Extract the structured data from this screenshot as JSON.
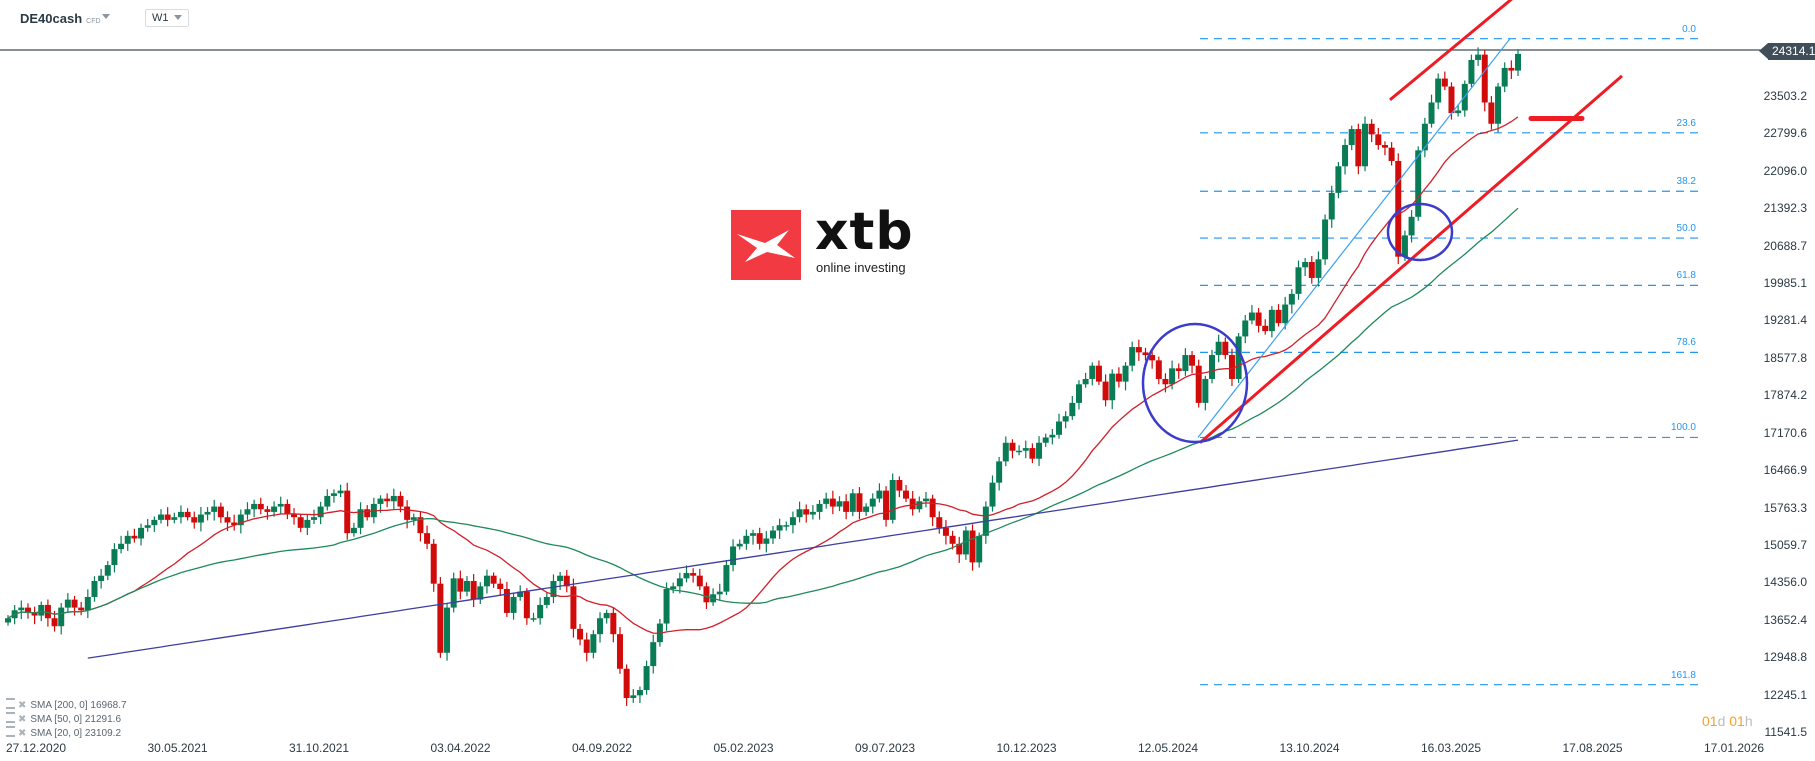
{
  "header": {
    "symbol": "DE40cash",
    "symbol_type": "CFD",
    "timeframe": "W1"
  },
  "current_price": "24314.1",
  "timer": {
    "days": "01",
    "d": "d",
    "hours": "01",
    "h": "h"
  },
  "logo": {
    "name": "xtb",
    "tagline": "online investing",
    "color": "#f23a43"
  },
  "legend": [
    {
      "label": "SMA [200,  0] 16968.7",
      "color": "#3f3fa0"
    },
    {
      "label": "SMA [50, 0] 21291.6",
      "color": "#1f8a5c"
    },
    {
      "label": "SMA [20, 0] 23109.2",
      "color": "#d0202a"
    }
  ],
  "colors": {
    "up": "#0a7c55",
    "down": "#d10a0a",
    "fib": "#2196f3",
    "trend": "#ee1c25",
    "circle": "#3b3bcc",
    "sma20": "#d0202a",
    "sma50": "#1f8a5c",
    "sma200": "#3f3fa0",
    "channel": "#3aa0f0"
  },
  "chart_data": {
    "type": "candlestick",
    "title": "DE40cash CFD, W1",
    "xlabel": "",
    "ylabel": "",
    "y_ticks": [
      "23503.2",
      "22799.6",
      "22096.0",
      "21392.3",
      "20688.7",
      "19985.1",
      "19281.4",
      "18577.8",
      "17874.2",
      "17170.6",
      "16466.9",
      "15763.3",
      "15059.7",
      "14356.0",
      "13652.4",
      "12948.8",
      "12245.1",
      "11541.5"
    ],
    "x_ticks": [
      "27.12.2020",
      "30.05.2021",
      "31.10.2021",
      "03.04.2022",
      "04.09.2022",
      "05.02.2023",
      "09.07.2023",
      "10.12.2023",
      "12.05.2024",
      "13.10.2024",
      "16.03.2025",
      "17.08.2025",
      "17.01.2026"
    ],
    "ylim": [
      11200,
      24900
    ],
    "fibonacci": [
      {
        "level": "0.0",
        "price": 24600
      },
      {
        "level": "23.6",
        "price": 22830
      },
      {
        "level": "38.2",
        "price": 21730
      },
      {
        "level": "50.0",
        "price": 20850
      },
      {
        "level": "61.8",
        "price": 19960
      },
      {
        "level": "78.6",
        "price": 18700
      },
      {
        "level": "100.0",
        "price": 17100
      },
      {
        "level": "161.8",
        "price": 12450
      }
    ],
    "closes": [
      13700,
      13850,
      13900,
      13800,
      13750,
      13950,
      13700,
      13550,
      13900,
      14050,
      13900,
      13850,
      14100,
      14400,
      14500,
      14700,
      15000,
      15100,
      15250,
      15200,
      15400,
      15450,
      15550,
      15650,
      15550,
      15600,
      15700,
      15600,
      15500,
      15650,
      15700,
      15800,
      15600,
      15500,
      15450,
      15650,
      15750,
      15850,
      15750,
      15700,
      15800,
      15850,
      15650,
      15600,
      15400,
      15550,
      15600,
      15800,
      16000,
      16050,
      16100,
      15300,
      15400,
      15750,
      15600,
      15850,
      15950,
      15900,
      16000,
      15800,
      15550,
      15600,
      15300,
      15100,
      14350,
      13050,
      13900,
      14450,
      14200,
      14400,
      14050,
      14300,
      14500,
      14350,
      14250,
      13800,
      14100,
      14200,
      13700,
      13700,
      13950,
      14100,
      14400,
      14500,
      14300,
      13500,
      13300,
      13050,
      13400,
      13700,
      13800,
      13400,
      12750,
      12200,
      12250,
      12350,
      12800,
      13250,
      13600,
      14250,
      14300,
      14450,
      14550,
      14500,
      14300,
      14000,
      14150,
      14200,
      14700,
      15050,
      15100,
      15250,
      15300,
      15100,
      15200,
      15350,
      15450,
      15450,
      15600,
      15750,
      15650,
      15700,
      15850,
      15950,
      15800,
      15900,
      15700,
      16050,
      15700,
      15800,
      15950,
      16100,
      15550,
      16300,
      16100,
      15950,
      15750,
      15900,
      15950,
      15600,
      15400,
      15250,
      15100,
      14900,
      15350,
      14750,
      15250,
      15800,
      16250,
      16650,
      17000,
      16850,
      16850,
      16900,
      16700,
      17000,
      17100,
      17150,
      17400,
      17500,
      17750,
      18100,
      18200,
      18450,
      18150,
      17800,
      18300,
      18150,
      18450,
      18800,
      18700,
      18650,
      18550,
      18200,
      18100,
      18400,
      18350,
      18650,
      18450,
      17750,
      18200,
      18650,
      18900,
      18650,
      18200,
      19000,
      19300,
      19450,
      19200,
      19100,
      19500,
      19250,
      19600,
      19800,
      20300,
      20400,
      20100,
      20450,
      21200,
      21700,
      22200,
      22600,
      22900,
      22200,
      23000,
      22800,
      22600,
      22550,
      22300,
      20500,
      20900,
      21250,
      22500,
      23000,
      23400,
      23850,
      23700,
      23200,
      23250,
      23750,
      24200,
      24300,
      23400,
      23000,
      23700,
      24050,
      24000,
      24314
    ]
  }
}
